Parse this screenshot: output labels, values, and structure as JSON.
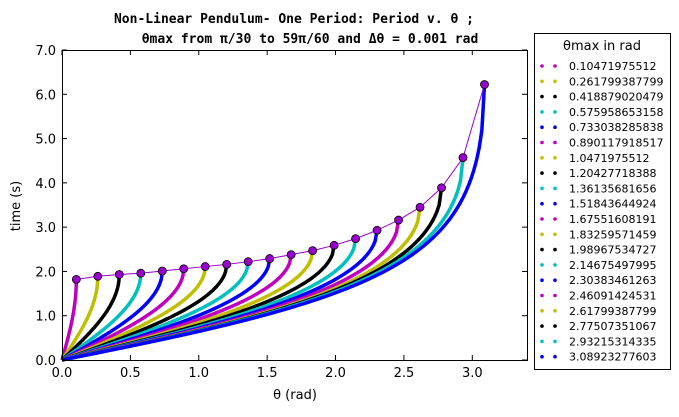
{
  "chart_data": {
    "type": "line",
    "title": {
      "line1": "Non-Linear Pendulum- One Period: Period v. θ ;",
      "line2": "θmax from π/30 to 59π/60 and Δθ = 0.001 rad"
    },
    "xlabel": "θ (rad)",
    "ylabel": "time (s)",
    "xlim": [
      0.0,
      3.4
    ],
    "ylim": [
      0.0,
      7.0
    ],
    "xticks": [
      "0.0",
      "0.5",
      "1.0",
      "1.5",
      "2.0",
      "2.5",
      "3.0"
    ],
    "yticks": [
      "0.0",
      "1.0",
      "2.0",
      "3.0",
      "4.0",
      "5.0",
      "6.0",
      "7.0"
    ],
    "grid": false,
    "legend": {
      "title": "θmax in rad",
      "placement": "outside-right"
    },
    "endpoint_color": "#9900cc",
    "series": [
      {
        "name": "0.10471975512",
        "color": "#bf00bf",
        "theta_max": 0.10471975512,
        "period": 1.82
      },
      {
        "name": "0.261799387799",
        "color": "#bfbf00",
        "theta_max": 0.261799387799,
        "period": 1.89
      },
      {
        "name": "0.418879020479",
        "color": "#000000",
        "theta_max": 0.418879020479,
        "period": 1.93
      },
      {
        "name": "0.575958653158",
        "color": "#00bfbf",
        "theta_max": 0.575958653158,
        "period": 1.96
      },
      {
        "name": "0.733038285838",
        "color": "#0000ff",
        "theta_max": 0.733038285838,
        "period": 2.01
      },
      {
        "name": "0.890117918517",
        "color": "#bf00bf",
        "theta_max": 0.890117918517,
        "period": 2.06
      },
      {
        "name": "1.0471975512",
        "color": "#bfbf00",
        "theta_max": 1.0471975512,
        "period": 2.11
      },
      {
        "name": "1.20427718388",
        "color": "#000000",
        "theta_max": 1.20427718388,
        "period": 2.16
      },
      {
        "name": "1.36135681656",
        "color": "#00bfbf",
        "theta_max": 1.36135681656,
        "period": 2.22
      },
      {
        "name": "1.51843644924",
        "color": "#0000ff",
        "theta_max": 1.51843644924,
        "period": 2.29
      },
      {
        "name": "1.67551608191",
        "color": "#bf00bf",
        "theta_max": 1.67551608191,
        "period": 2.38
      },
      {
        "name": "1.83259571459",
        "color": "#bfbf00",
        "theta_max": 1.83259571459,
        "period": 2.47
      },
      {
        "name": "1.98967534727",
        "color": "#000000",
        "theta_max": 1.98967534727,
        "period": 2.59
      },
      {
        "name": "2.14675497995",
        "color": "#00bfbf",
        "theta_max": 2.14675497995,
        "period": 2.74
      },
      {
        "name": "2.30383461263",
        "color": "#0000ff",
        "theta_max": 2.30383461263,
        "period": 2.93
      },
      {
        "name": "2.46091424531",
        "color": "#bf00bf",
        "theta_max": 2.46091424531,
        "period": 3.16
      },
      {
        "name": "2.61799387799",
        "color": "#bfbf00",
        "theta_max": 2.61799387799,
        "period": 3.45
      },
      {
        "name": "2.77507351067",
        "color": "#000000",
        "theta_max": 2.77507351067,
        "period": 3.89
      },
      {
        "name": "2.93215314335",
        "color": "#00bfbf",
        "theta_max": 2.93215314335,
        "period": 4.57
      },
      {
        "name": "3.08923277603",
        "color": "#0000ff",
        "theta_max": 3.08923277603,
        "period": 6.22
      }
    ]
  }
}
